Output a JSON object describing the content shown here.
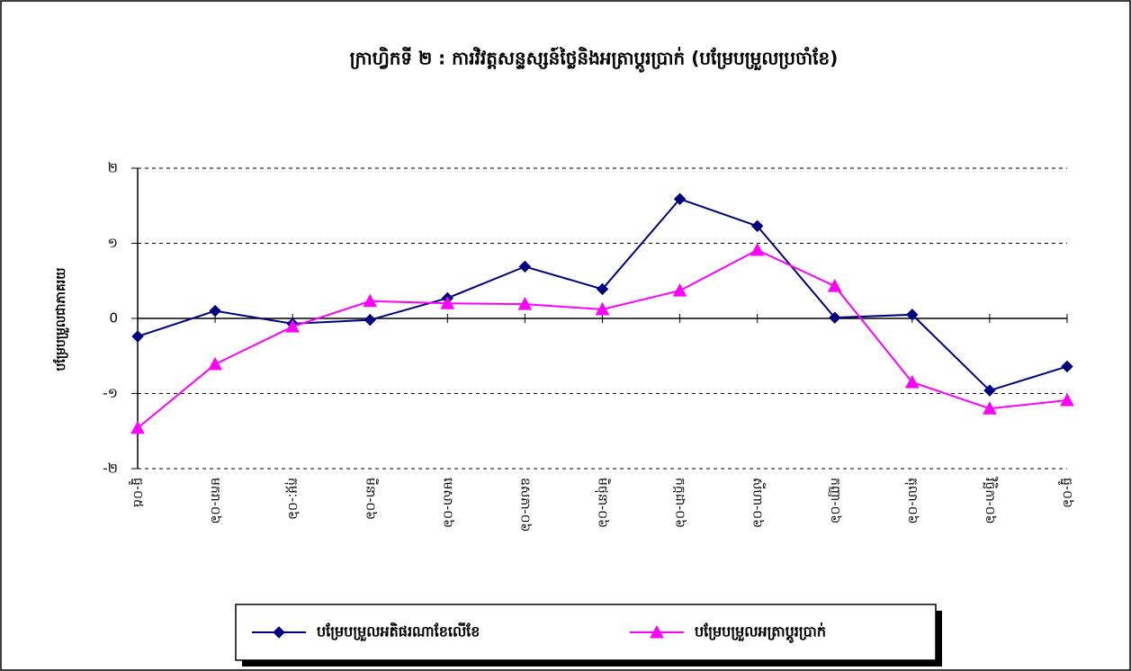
{
  "chart_data": {
    "type": "line",
    "title": "ក្រាហ្វិកទី ២ : ការវិវត្តសន្ទស្សន៍ថ្លៃនិងអត្រាប្តូរប្រាក់ (បម្រែបម្រួលប្រចាំខែ)",
    "y_label": "បម្រែបម្រួលជាភាគរយ",
    "categories": [
      "ធ្នូ-០៥",
      "មករា-០៦",
      "កុម្ភៈ-០៦",
      "មីនា-០៦",
      "មេសា-០៦",
      "ឧសភា-០៦",
      "មិថុនា-០៦",
      "កក្កដា-០៦",
      "សីហា-០៦",
      "កញ្ញា-០៦",
      "តុលា-០៦",
      "វិច្ឆិកា-០៦",
      "ធ្នូ-០៦"
    ],
    "series": [
      {
        "name": "បម្រែបម្រួលអតិផរណាខែលើខែ",
        "color": "#000080",
        "marker": "diamond",
        "values": [
          -0.24,
          0.1,
          -0.07,
          -0.02,
          0.27,
          0.69,
          0.39,
          1.59,
          1.23,
          0.01,
          0.05,
          -0.96,
          -0.64
        ]
      },
      {
        "name": "បម្រែបម្រួលអត្រាប្តូរប្រាក់",
        "color": "#ff00ff",
        "marker": "triangle",
        "values": [
          -1.46,
          -0.61,
          -0.11,
          0.23,
          0.2,
          0.19,
          0.12,
          0.37,
          0.91,
          0.43,
          -0.85,
          -1.2,
          -1.09
        ]
      }
    ],
    "ylim": [
      -2,
      2
    ],
    "yticks": [
      {
        "value": -2,
        "label": "-២"
      },
      {
        "value": -1,
        "label": "-១"
      },
      0,
      {
        "value": 1,
        "label": "១"
      },
      {
        "value": 2,
        "label": "២"
      }
    ],
    "grid": true,
    "legend": "bottom"
  }
}
